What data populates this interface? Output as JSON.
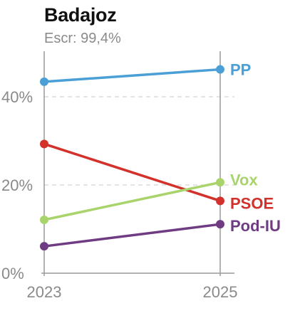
{
  "header": {
    "title": "Badajoz",
    "subtitle": "Escr: 99,4%"
  },
  "chart_data": {
    "type": "line",
    "x": [
      "2023",
      "2025"
    ],
    "ylim": [
      0,
      50
    ],
    "yticks": [
      0,
      20,
      40
    ],
    "ytick_labels": [
      "0%",
      "20%",
      "40%"
    ],
    "grid": true,
    "series": [
      {
        "name": "PP",
        "values": [
          43.4,
          46.2
        ],
        "color": "#4a9fd6"
      },
      {
        "name": "PSOE",
        "values": [
          29.3,
          16.4
        ],
        "color": "#d2312c"
      },
      {
        "name": "Vox",
        "values": [
          12.1,
          20.6
        ],
        "color": "#a9d46b"
      },
      {
        "name": "Pod-IU",
        "values": [
          6.1,
          11.1
        ],
        "color": "#6f3c84"
      }
    ]
  }
}
